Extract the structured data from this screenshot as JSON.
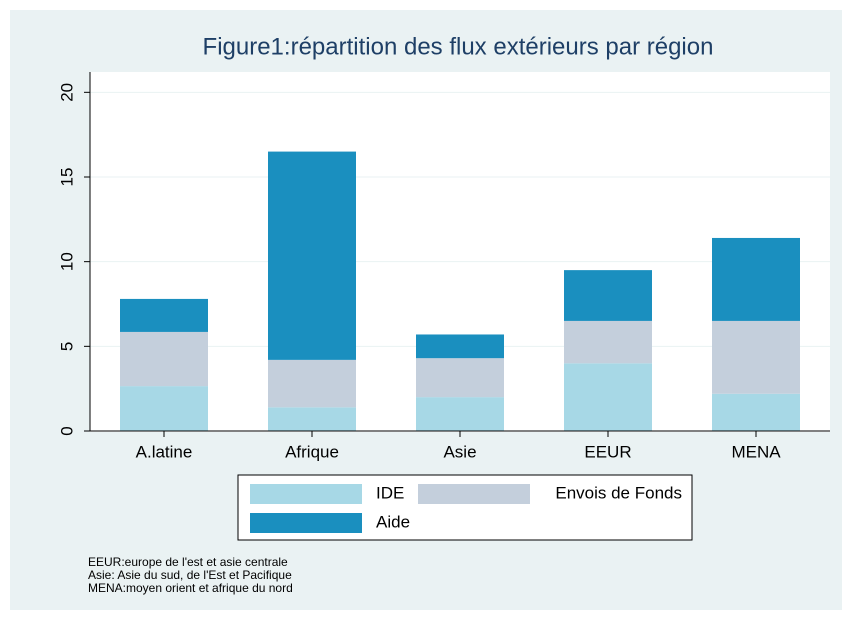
{
  "chart_data": {
    "type": "stacked_bar",
    "title": "Figure1:répartition des flux extérieurs par région",
    "categories": [
      "A.latine",
      "Afrique",
      "Asie",
      "EEUR",
      "MENA"
    ],
    "series": [
      {
        "name": "IDE",
        "color": "#a7d8e6",
        "values": [
          2.65,
          1.4,
          2.0,
          4.0,
          2.2
        ]
      },
      {
        "name": "Envois de Fonds",
        "color": "#c4cfdc",
        "values": [
          3.2,
          2.8,
          2.3,
          2.5,
          4.3
        ]
      },
      {
        "name": "Aide",
        "color": "#1a8fbf",
        "values": [
          1.95,
          12.3,
          1.4,
          3.0,
          4.9
        ]
      }
    ],
    "ylim": [
      0,
      21.2
    ],
    "yticks": [
      0,
      5,
      10,
      15,
      20
    ],
    "grid": true,
    "notes": [
      "EEUR:europe de l'est et asie centrale",
      "Asie: Asie du sud, de l'Est et Pacifique",
      "MENA:moyen orient et afrique du nord"
    ]
  }
}
